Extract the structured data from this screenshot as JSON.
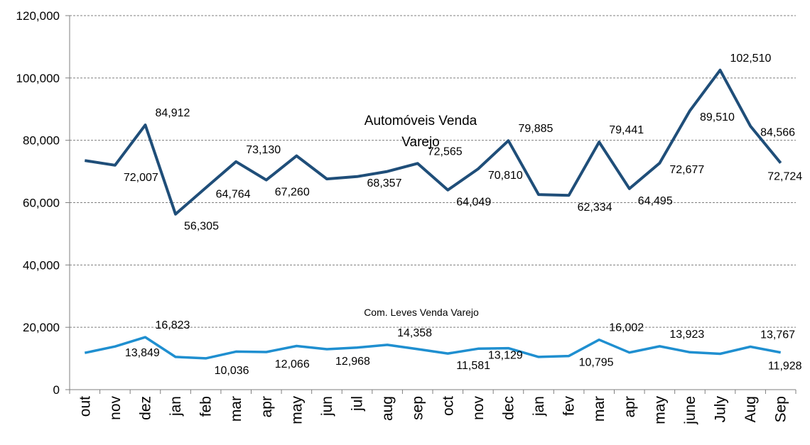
{
  "chart_data": {
    "type": "line",
    "title": "",
    "xlabel": "",
    "ylabel": "",
    "ylim": [
      0,
      120000
    ],
    "y_ticks": [
      0,
      20000,
      40000,
      60000,
      80000,
      100000,
      120000
    ],
    "y_tick_labels": [
      "0",
      "20,000",
      "40,000",
      "60,000",
      "80,000",
      "100,000",
      "120,000"
    ],
    "grid": true,
    "legend": "none",
    "categories": [
      "out",
      "nov",
      "dez",
      "jan",
      "feb",
      "mar",
      "apr",
      "may",
      "jun",
      "jul",
      "aug",
      "sep",
      "oct",
      "nov",
      "dec",
      "jan",
      "fev",
      "mar",
      "apr",
      "may",
      "june",
      "July",
      "Aug",
      "Sep"
    ],
    "series": [
      {
        "name": "Automóveis Venda Varejo",
        "name_lines": [
          "Automóveis Venda",
          "Varejo"
        ],
        "color": "#1f4e79",
        "values": [
          73500,
          72007,
          84912,
          56305,
          64764,
          73130,
          67260,
          75000,
          67600,
          68357,
          70000,
          72565,
          64049,
          70810,
          79885,
          62600,
          62334,
          79441,
          64495,
          72677,
          89510,
          102510,
          84566,
          72724
        ],
        "labels": [
          "",
          "72,007",
          "84,912",
          "56,305",
          "64,764",
          "73,130",
          "67,260",
          "",
          "",
          "68,357",
          "",
          "72,565",
          "64,049",
          "70,810",
          "79,885",
          "",
          "62,334",
          "79,441",
          "64,495",
          "72,677",
          "89,510",
          "102,510",
          "84,566",
          "72,724"
        ]
      },
      {
        "name": "Com. Leves Venda Varejo",
        "color": "#1f8fd0",
        "values": [
          11800,
          13849,
          16823,
          10500,
          10036,
          12200,
          12066,
          14000,
          12968,
          13500,
          14358,
          13000,
          11581,
          13129,
          13300,
          10500,
          10795,
          16002,
          11900,
          13923,
          12000,
          11500,
          13767,
          11928
        ],
        "labels": [
          "",
          "13,849",
          "16,823",
          "",
          "10,036",
          "",
          "12,066",
          "",
          "12,968",
          "",
          "14,358",
          "",
          "11,581",
          "13,129",
          "",
          "",
          "10,795",
          "16,002",
          "",
          "13,923",
          "",
          "",
          "13,767",
          "11,928"
        ]
      }
    ]
  }
}
